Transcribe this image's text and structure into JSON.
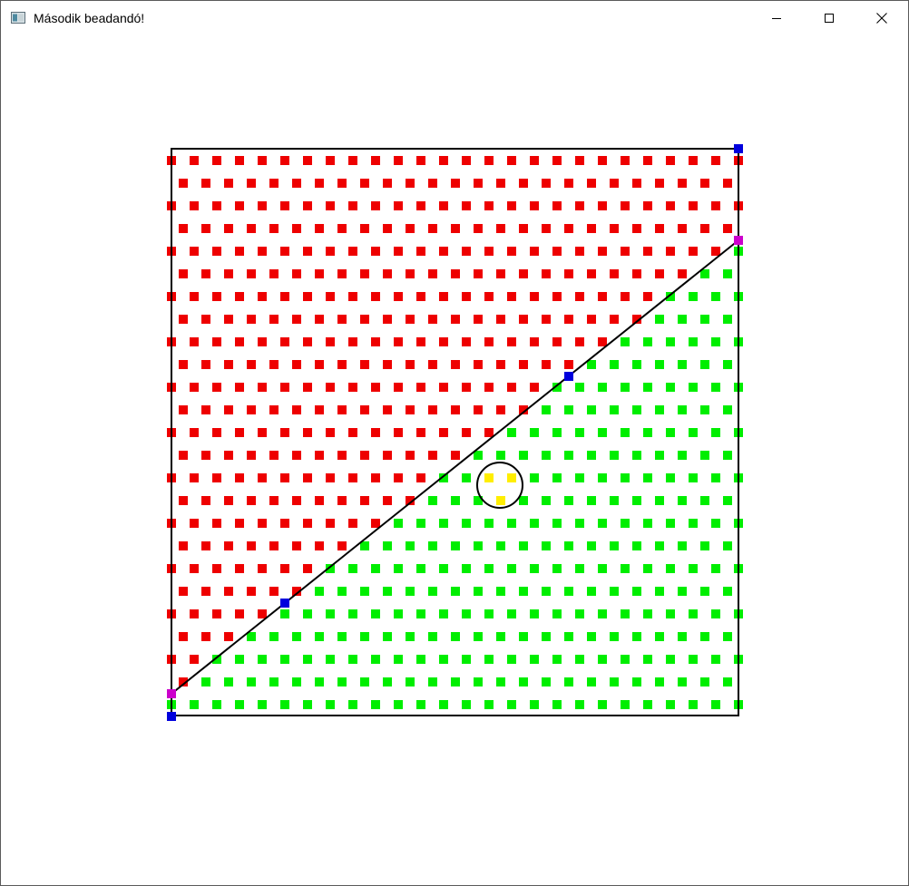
{
  "window": {
    "title": "Második beadandó!",
    "icon": "app-window-icon",
    "controls": [
      "minimize-icon",
      "maximize-icon",
      "close-icon"
    ]
  },
  "scene": {
    "colors": {
      "above_line": "#ee0000",
      "below_line": "#00ee00",
      "inside_circle": "#ffee00",
      "control_point": "#0000dd",
      "intersection_point": "#cc00cc",
      "outline": "#000000"
    }
  }
}
